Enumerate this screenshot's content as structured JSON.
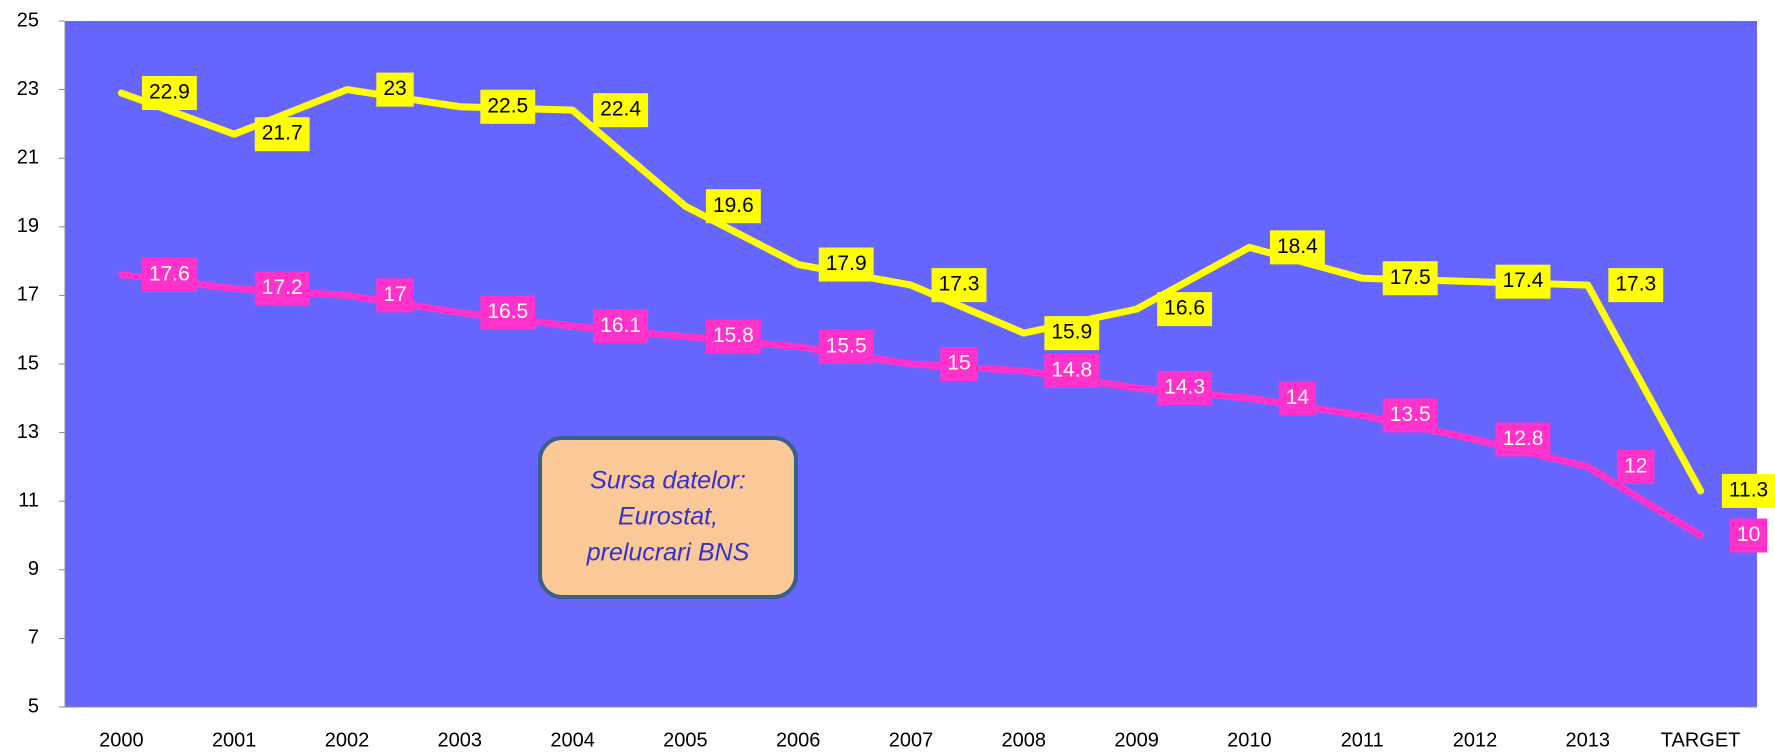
{
  "chart_data": {
    "type": "line",
    "categories": [
      "2000",
      "2001",
      "2002",
      "2003",
      "2004",
      "2005",
      "2006",
      "2007",
      "2008",
      "2009",
      "2010",
      "2011",
      "2012",
      "2013",
      "TARGET"
    ],
    "series": [
      {
        "color": "#ffff00",
        "label_text_color": "#000000",
        "values": [
          22.9,
          21.7,
          23,
          22.5,
          22.4,
          19.6,
          17.9,
          17.3,
          15.9,
          16.6,
          18.4,
          17.5,
          17.4,
          17.3,
          11.3
        ]
      },
      {
        "color": "#ff33cc",
        "label_text_color": "#ffffff",
        "values": [
          17.6,
          17.2,
          17,
          16.5,
          16.1,
          15.8,
          15.5,
          15,
          14.8,
          14.3,
          14,
          13.5,
          12.8,
          12,
          10
        ]
      }
    ],
    "ylim": [
      5,
      25
    ],
    "yticks": [
      5,
      7,
      9,
      11,
      13,
      15,
      17,
      19,
      21,
      23,
      25
    ],
    "plot_background": "#6666ff",
    "annotation": {
      "lines": [
        "Sursa datelor:",
        "Eurostat,",
        "prelucrari BNS"
      ]
    }
  }
}
